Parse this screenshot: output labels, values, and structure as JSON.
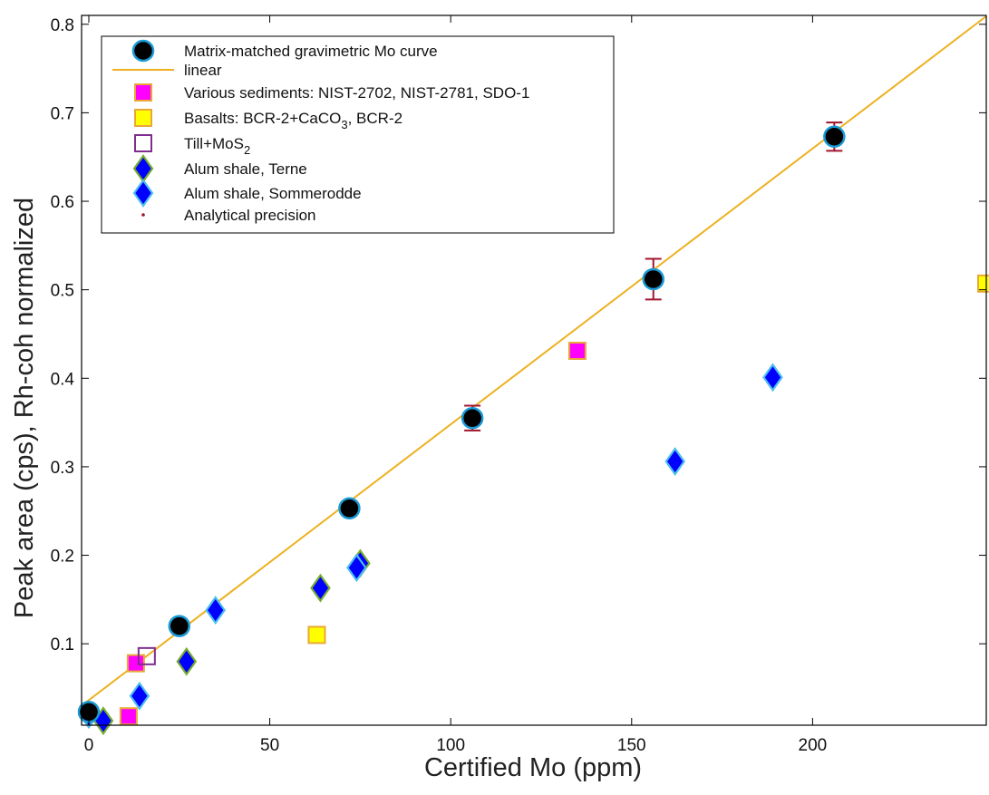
{
  "chart_data": {
    "type": "scatter",
    "xlabel": "Certified Mo (ppm)",
    "ylabel": "Peak area (cps), Rh-coh normalized",
    "xlim": [
      -2,
      248
    ],
    "ylim": [
      0.008,
      0.81
    ],
    "x_ticks": [
      0,
      50,
      100,
      150,
      200
    ],
    "x_tick_labels": [
      "0",
      "50",
      "100",
      "150",
      "200"
    ],
    "y_ticks": [
      0.1,
      0.2,
      0.3,
      0.4,
      0.5,
      0.6,
      0.7,
      0.8
    ],
    "y_tick_labels": [
      "0.1",
      "0.2",
      "0.3",
      "0.4",
      "0.5",
      "0.6",
      "0.7",
      "0.8"
    ],
    "grid": false,
    "legend_position": "top-left",
    "linear_fit": {
      "x": [
        -2,
        248
      ],
      "y": [
        0.0301,
        0.8091
      ]
    },
    "series": [
      {
        "name": "Matrix-matched gravimetric Mo curve",
        "marker": "circle",
        "color": "#000000",
        "edge": "#1a9ad6",
        "points": [
          {
            "x": 0,
            "y": 0.023
          },
          {
            "x": 25,
            "y": 0.12
          },
          {
            "x": 72,
            "y": 0.253
          },
          {
            "x": 106,
            "y": 0.355
          },
          {
            "x": 156,
            "y": 0.512
          },
          {
            "x": 206,
            "y": 0.673
          }
        ]
      },
      {
        "name": "linear",
        "marker": "line",
        "color": "#edb120"
      },
      {
        "name": "Various sediments: NIST-2702, NIST-2781, SDO-1",
        "marker": "square",
        "color": "#ff00ff",
        "edge": "#e8a838",
        "points": [
          {
            "x": 11,
            "y": 0.018
          },
          {
            "x": 13,
            "y": 0.078
          },
          {
            "x": 135,
            "y": 0.431
          }
        ]
      },
      {
        "name": "Basalts: BCR-2+CaCO3, BCR-2",
        "marker": "square",
        "color": "#ffff00",
        "edge": "#e8a838",
        "points": [
          {
            "x": 63,
            "y": 0.11
          },
          {
            "x": 248,
            "y": 0.507
          }
        ]
      },
      {
        "name": "Till+MoS2",
        "marker": "square-open",
        "color": "#7e2f8e",
        "points": [
          {
            "x": 16,
            "y": 0.086
          }
        ]
      },
      {
        "name": "Alum shale, Terne",
        "marker": "diamond",
        "color": "#0000ff",
        "edge": "#77ac30",
        "points": [
          {
            "x": 4,
            "y": 0.013
          },
          {
            "x": 27,
            "y": 0.08
          },
          {
            "x": 64,
            "y": 0.163
          },
          {
            "x": 75,
            "y": 0.191
          }
        ]
      },
      {
        "name": "Alum shale, Sommerodde",
        "marker": "diamond",
        "color": "#0000ff",
        "edge": "#4dbeee",
        "points": [
          {
            "x": 0,
            "y": 0.02
          },
          {
            "x": 14,
            "y": 0.041
          },
          {
            "x": 35,
            "y": 0.138
          },
          {
            "x": 74,
            "y": 0.186
          },
          {
            "x": 162,
            "y": 0.306
          },
          {
            "x": 189,
            "y": 0.401
          }
        ]
      },
      {
        "name": "Analytical precision",
        "marker": "errorbar",
        "color": "#a2142f",
        "points": [
          {
            "x": 0,
            "y": 0.023,
            "err": 0.004
          },
          {
            "x": 25,
            "y": 0.12,
            "err": 0.008
          },
          {
            "x": 72,
            "y": 0.253,
            "err": 0.006
          },
          {
            "x": 106,
            "y": 0.355,
            "err": 0.014
          },
          {
            "x": 156,
            "y": 0.512,
            "err": 0.023
          },
          {
            "x": 206,
            "y": 0.673,
            "err": 0.016
          }
        ]
      }
    ]
  },
  "legend": {
    "entries": [
      {
        "id": "gravimetric",
        "prefix": "Matrix-matched gravimetric Mo curve",
        "sub": "",
        "suffix": ""
      },
      {
        "id": "linear",
        "prefix": "   linear",
        "sub": "",
        "suffix": ""
      },
      {
        "id": "sediments",
        "prefix": "Various sediments: NIST-2702, NIST-2781, SDO-1",
        "sub": "",
        "suffix": ""
      },
      {
        "id": "basalts",
        "prefix": "Basalts: BCR-2+CaCO",
        "sub": "3",
        "suffix": ", BCR-2"
      },
      {
        "id": "till",
        "prefix": "Till+MoS",
        "sub": "2",
        "suffix": ""
      },
      {
        "id": "terne",
        "prefix": "Alum shale, Terne",
        "sub": "",
        "suffix": ""
      },
      {
        "id": "sommerodde",
        "prefix": "Alum shale, Sommerodde",
        "sub": "",
        "suffix": ""
      },
      {
        "id": "precision",
        "prefix": "Analytical precision",
        "sub": "",
        "suffix": ""
      }
    ]
  }
}
